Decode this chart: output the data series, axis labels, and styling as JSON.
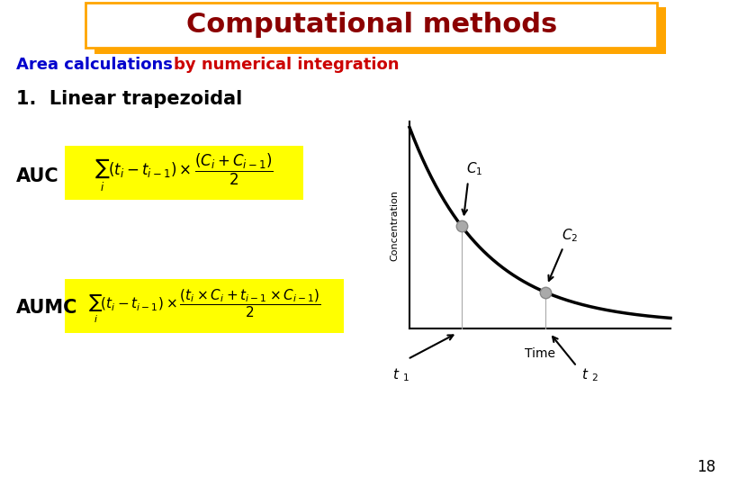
{
  "bg_color": "#ffffff",
  "title_text": "Computational methods",
  "title_color": "#8B0000",
  "title_box_edge_color": "#FFA500",
  "subtitle_blue": "Area calculations ",
  "subtitle_blue_color": "#0000CD",
  "subtitle_red": "by numerical integration",
  "subtitle_red_color": "#CC0000",
  "point1_label": "1.  Linear trapezoidal",
  "auc_label": "AUC",
  "aumc_label": "AUMC",
  "formula_bg": "#FFFF00",
  "page_number": "18",
  "concentration_label": "Concentration",
  "time_label": "Time"
}
